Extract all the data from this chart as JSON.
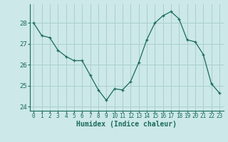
{
  "x": [
    0,
    1,
    2,
    3,
    4,
    5,
    6,
    7,
    8,
    9,
    10,
    11,
    12,
    13,
    14,
    15,
    16,
    17,
    18,
    19,
    20,
    21,
    22,
    23
  ],
  "y": [
    28.0,
    27.4,
    27.3,
    26.7,
    26.4,
    26.2,
    26.2,
    25.5,
    24.8,
    24.3,
    24.85,
    24.8,
    25.2,
    26.1,
    27.2,
    28.0,
    28.35,
    28.55,
    28.2,
    27.2,
    27.1,
    26.5,
    25.1,
    24.65
  ],
  "line_color": "#1a6b5a",
  "bg_color": "#cce8e8",
  "grid_color": "#aacfcf",
  "xlabel": "Humidex (Indice chaleur)",
  "ylim": [
    23.8,
    28.9
  ],
  "xlim": [
    -0.5,
    23.5
  ],
  "yticks": [
    24,
    25,
    26,
    27,
    28
  ],
  "xticks": [
    0,
    1,
    2,
    3,
    4,
    5,
    6,
    7,
    8,
    9,
    10,
    11,
    12,
    13,
    14,
    15,
    16,
    17,
    18,
    19,
    20,
    21,
    22,
    23
  ],
  "xlabel_fontsize": 7,
  "tick_fontsize": 5.5,
  "ytick_fontsize": 6.5
}
